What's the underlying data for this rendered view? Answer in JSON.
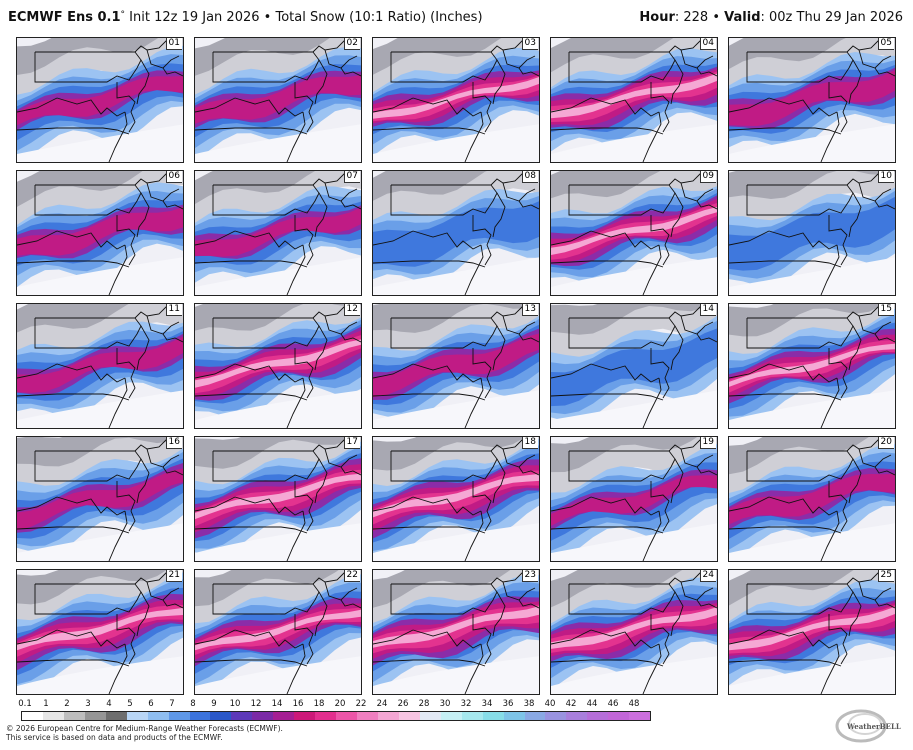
{
  "header": {
    "model": "ECMWF Ens 0.1",
    "degree": "°",
    "init": "Init 12z 19 Jan 2026",
    "bullet": "•",
    "product": "Total Snow (10:1 Ratio) (Inches)",
    "hour_label": "Hour",
    "hour_value": ": 228",
    "valid_label": "Valid",
    "valid_value": ": 00z Thu 29 Jan 2026"
  },
  "members": [
    {
      "label": "01",
      "level": 0.45
    },
    {
      "label": "06",
      "level": 0.55
    },
    {
      "label": "11",
      "level": 0.45
    },
    {
      "label": "16",
      "level": 0.45
    },
    {
      "label": "21",
      "level": 0.8
    },
    {
      "label": "02",
      "level": 0.55
    },
    {
      "label": "07",
      "level": 0.4
    },
    {
      "label": "12",
      "level": 0.75
    },
    {
      "label": "17",
      "level": 0.8
    },
    {
      "label": "22",
      "level": 0.7
    },
    {
      "label": "03",
      "level": 0.65
    },
    {
      "label": "08",
      "level": 0.3
    },
    {
      "label": "13",
      "level": 0.55
    },
    {
      "label": "18",
      "level": 0.85
    },
    {
      "label": "23",
      "level": 0.9
    },
    {
      "label": "04",
      "level": 0.8
    },
    {
      "label": "09",
      "level": 0.7
    },
    {
      "label": "14",
      "level": 0.2
    },
    {
      "label": "19",
      "level": 0.35
    },
    {
      "label": "24",
      "level": 0.8
    },
    {
      "label": "05",
      "level": 0.6
    },
    {
      "label": "10",
      "level": 0.25
    },
    {
      "label": "15",
      "level": 0.65
    },
    {
      "label": "20",
      "level": 0.55
    },
    {
      "label": "25",
      "level": 0.75
    }
  ],
  "colorbar": {
    "ticks": [
      "0.1",
      "1",
      "2",
      "3",
      "4",
      "5",
      "6",
      "7",
      "8",
      "9",
      "10",
      "12",
      "14",
      "16",
      "18",
      "20",
      "22",
      "24",
      "26",
      "28",
      "30",
      "32",
      "34",
      "36",
      "38",
      "40",
      "42",
      "44",
      "46",
      "48"
    ],
    "colors": [
      "#ffffff",
      "#e6e6e6",
      "#bebebe",
      "#969696",
      "#6e6e6e",
      "#b9d6f6",
      "#8fbef1",
      "#5f98e8",
      "#3c73dc",
      "#2a57c8",
      "#5d39b9",
      "#7b2aa6",
      "#a51e93",
      "#cc1879",
      "#e22e8e",
      "#ec55a8",
      "#f07fc0",
      "#f4a6d3",
      "#f7c5e2",
      "#e2e9f5",
      "#c6f0f5",
      "#a6e8ee",
      "#87dde8",
      "#7ec4e8",
      "#8aa9e4",
      "#9a93e0",
      "#a97fdc",
      "#b66ed9",
      "#c266d8",
      "#cb6fdd"
    ]
  },
  "footer": {
    "line1": "© 2026 European Centre for Medium-Range Weather Forecasts (ECMWF).",
    "line2": "This service is based on data and products of the ECMWF."
  },
  "logo": {
    "text": "WeatherBELL"
  }
}
